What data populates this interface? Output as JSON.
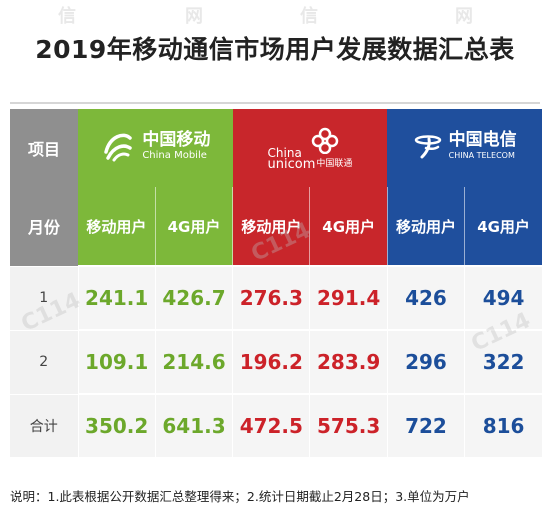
{
  "title": "2019年移动通信市场用户发展数据汇总表",
  "header": {
    "item_label": "项目",
    "month_label": "月份"
  },
  "operators": [
    {
      "cn": "中国移动",
      "en": "China Mobile",
      "color": "#7db83a",
      "logo_icon": "china-mobile-logo"
    },
    {
      "cn_a": "China",
      "cn_b": "unicom",
      "cn_c": "中国联通",
      "color": "#c8262b",
      "logo_icon": "china-unicom-knot-logo"
    },
    {
      "cn": "中国电信",
      "en": "CHINA TELECOM",
      "color": "#1f4f9d",
      "logo_icon": "china-telecom-logo"
    }
  ],
  "sub_headers": {
    "mobile_users": "移动用户",
    "users_4g": "4G用户"
  },
  "rows": [
    {
      "month": "1",
      "cm_mobile": "241.1",
      "cm_4g": "426.7",
      "cu_mobile": "276.3",
      "cu_4g": "291.4",
      "ct_mobile": "426",
      "ct_4g": "494"
    },
    {
      "month": "2",
      "cm_mobile": "109.1",
      "cm_4g": "214.6",
      "cu_mobile": "196.2",
      "cu_4g": "283.9",
      "ct_mobile": "296",
      "ct_4g": "322"
    },
    {
      "month": "合计",
      "cm_mobile": "350.2",
      "cm_4g": "641.3",
      "cu_mobile": "472.5",
      "cu_4g": "575.3",
      "ct_mobile": "722",
      "ct_4g": "816"
    }
  ],
  "footer": "说明：1.此表根据公开数据汇总整理得来；2.统计日期截止2月28日；3.单位为万户",
  "watermark": {
    "text_a": "信",
    "text_b": "网",
    "text_c": "C114"
  }
}
